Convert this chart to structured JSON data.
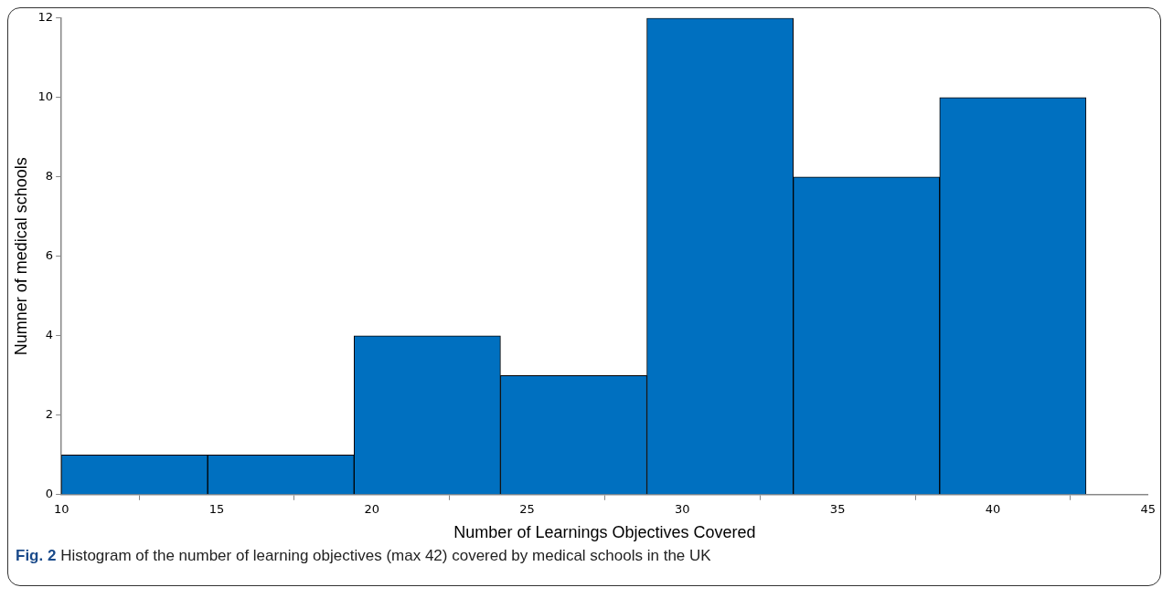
{
  "chart_data": {
    "type": "histogram",
    "bins": [
      10,
      14.71,
      19.43,
      24.14,
      28.86,
      33.57,
      38.29,
      43
    ],
    "values": [
      1,
      1,
      4,
      3,
      12,
      8,
      10
    ],
    "color": "#0070c0",
    "xlabel": "Number of Learnings Objectives Covered",
    "ylabel": "Numner of medical schools",
    "xlim": [
      10,
      45
    ],
    "xticks": [
      10,
      15,
      20,
      25,
      30,
      35,
      40,
      45
    ],
    "ylim": [
      0,
      12
    ],
    "yticks": [
      0,
      2,
      4,
      6,
      8,
      10,
      12
    ],
    "annotations": [
      "Fig. 2 Histogram of the number of learning objectives (max 42) covered by medical schools in the UK"
    ]
  }
}
